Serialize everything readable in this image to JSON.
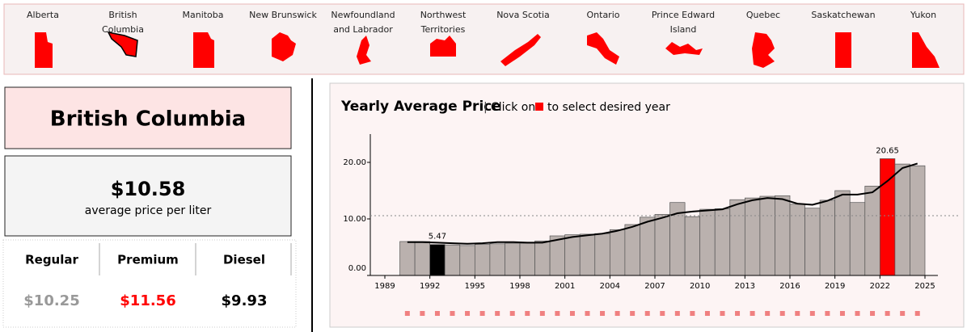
{
  "provinces": [
    {
      "name": [
        "Alberta"
      ]
    },
    {
      "name": [
        "British",
        "Columbia"
      ]
    },
    {
      "name": [
        "Manitoba"
      ]
    },
    {
      "name": [
        "New Brunswick"
      ]
    },
    {
      "name": [
        "Newfoundland",
        "and Labrador"
      ]
    },
    {
      "name": [
        "Northwest",
        "Territories"
      ]
    },
    {
      "name": [
        "Nova Scotia"
      ]
    },
    {
      "name": [
        "Ontario"
      ]
    },
    {
      "name": [
        "Prince Edward",
        "Island"
      ]
    },
    {
      "name": [
        "Quebec"
      ]
    },
    {
      "name": [
        "Saskatchewan"
      ]
    },
    {
      "name": [
        "Yukon"
      ]
    }
  ],
  "selected_province": "British Columbia",
  "price": {
    "value": "$10.58",
    "label": "average price per liter"
  },
  "fuels": [
    {
      "name": "Regular",
      "price": "$10.25",
      "color": "#999999"
    },
    {
      "name": "Premium",
      "price": "$11.56",
      "color": "#ff0000"
    },
    {
      "name": "Diesel",
      "price": "$9.93",
      "color": "#000000"
    }
  ],
  "chart_data": {
    "type": "bar",
    "title": "Yearly Average Price",
    "subtitle_parts": [
      "Click on",
      "to select desired year"
    ],
    "x": [
      1990,
      1991,
      1992,
      1993,
      1994,
      1995,
      1996,
      1997,
      1998,
      1999,
      2000,
      2001,
      2002,
      2003,
      2004,
      2005,
      2006,
      2007,
      2008,
      2009,
      2010,
      2011,
      2012,
      2013,
      2014,
      2015,
      2016,
      2017,
      2018,
      2019,
      2020,
      2021,
      2022,
      2023,
      2024
    ],
    "values": [
      6.0,
      6.0,
      5.47,
      5.4,
      5.3,
      5.5,
      5.6,
      5.7,
      5.7,
      6.1,
      7.0,
      7.2,
      7.3,
      7.4,
      8.1,
      9.0,
      10.3,
      10.8,
      12.9,
      10.4,
      11.7,
      11.8,
      13.4,
      13.7,
      14.0,
      14.1,
      12.6,
      11.9,
      13.3,
      15.0,
      12.9,
      15.8,
      20.65,
      19.7,
      19.4
    ],
    "trend_values": [
      5.9,
      5.9,
      5.8,
      5.7,
      5.6,
      5.7,
      5.9,
      5.9,
      5.8,
      5.8,
      6.3,
      6.8,
      7.1,
      7.4,
      7.9,
      8.6,
      9.5,
      10.2,
      11.0,
      11.3,
      11.5,
      11.7,
      12.6,
      13.3,
      13.7,
      13.5,
      12.7,
      12.5,
      13.2,
      14.3,
      14.3,
      14.7,
      16.7,
      19.0,
      19.8
    ],
    "color": "#bab1ae",
    "selected_index": 32,
    "selected_color": "#ff0000",
    "compare_index": 2,
    "compare_color": "#000000",
    "average": 10.58,
    "xlim": [
      1989,
      2025
    ],
    "xticks": [
      1989,
      1992,
      1995,
      1998,
      2001,
      2004,
      2007,
      2010,
      2013,
      2016,
      2019,
      2022,
      2025
    ],
    "ylim": [
      0,
      25
    ],
    "yticks": [
      {
        "value": 0,
        "label": "0.00"
      },
      {
        "value": 10,
        "label": "10.00"
      },
      {
        "value": 20,
        "label": "20.00"
      }
    ]
  }
}
